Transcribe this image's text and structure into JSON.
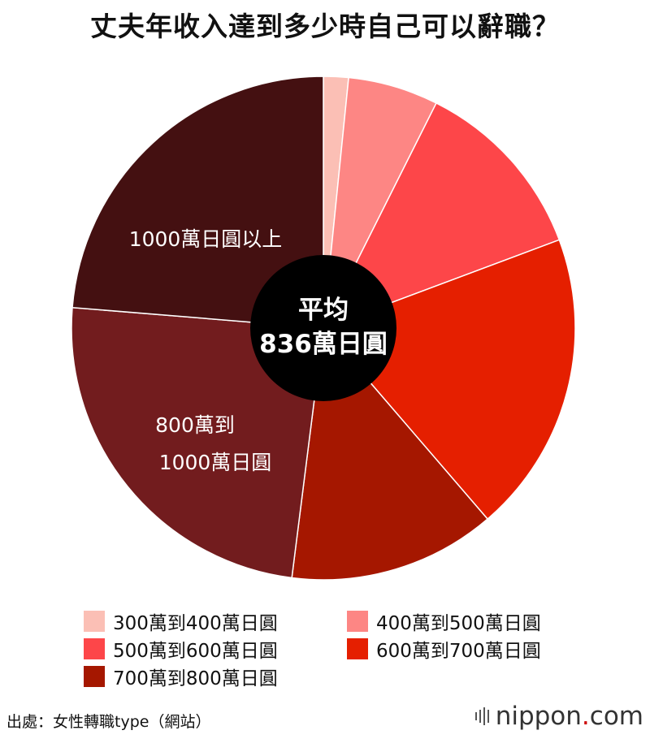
{
  "title": "丈夫年收入達到多少時自己可以辭職？",
  "center": {
    "line1": "平均",
    "line2": "836萬日圓"
  },
  "slice_labels": {
    "s7": "1000萬日圓以上",
    "s6_line1": "800萬到",
    "s6_line2": "1000萬日圓"
  },
  "colors": [
    "#fbbfb5",
    "#fd8684",
    "#fd4649",
    "#e51f00",
    "#a51700",
    "#721c1e",
    "#441011"
  ],
  "chart_data": {
    "type": "pie",
    "title": "丈夫年收入達到多少時自己可以辭職？",
    "categories": [
      "300萬到400萬日圓",
      "400萬到500萬日圓",
      "500萬到600萬日圓",
      "600萬到700萬日圓",
      "700萬到800萬日圓",
      "800萬到1000萬日圓",
      "1000萬日圓以上"
    ],
    "values": [
      1.6,
      5.8,
      11.9,
      19.4,
      13.3,
      24.3,
      23.7
    ],
    "legend": "bottom",
    "center_label": "平均836萬日圓"
  },
  "source": "出處：女性轉職type（網站）",
  "brand": {
    "name": "nippon",
    "dot": ".",
    "suffix": "com"
  }
}
